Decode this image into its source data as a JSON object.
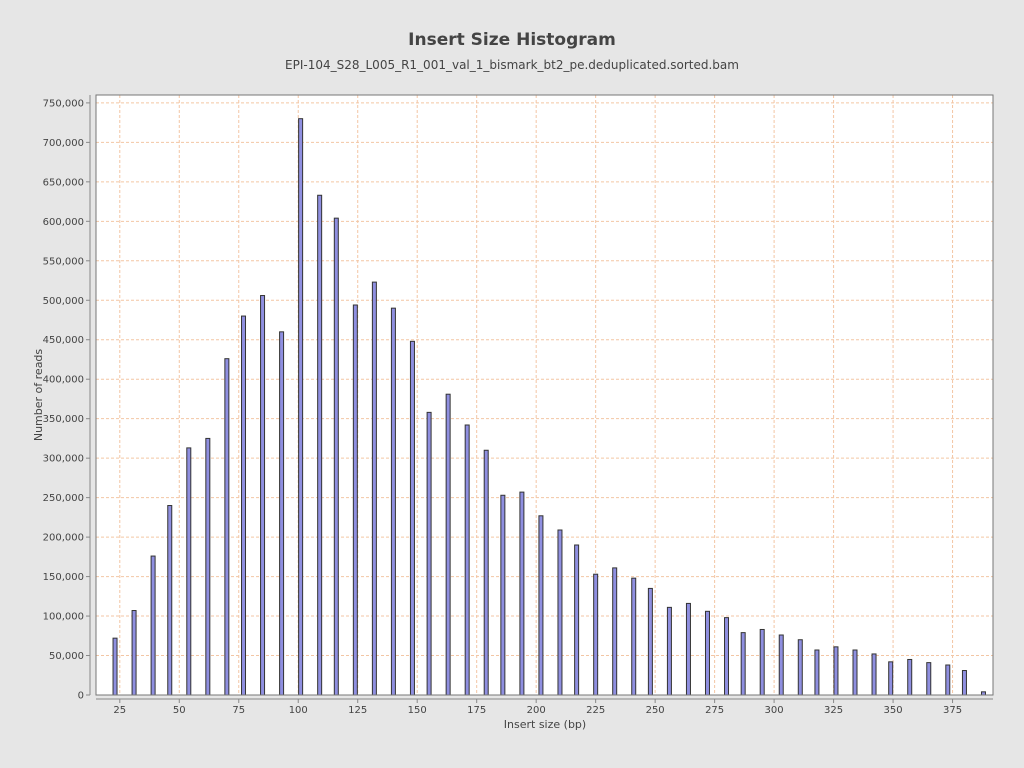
{
  "chart_data": {
    "type": "bar",
    "title": "Insert Size Histogram",
    "subtitle": "EPI-104_S28_L005_R1_001_val_1_bismark_bt2_pe.deduplicated.sorted.bam",
    "xlabel": "Insert size (bp)",
    "ylabel": "Number of reads",
    "xlim": [
      15,
      392
    ],
    "ylim": [
      0,
      760000
    ],
    "x_ticks": [
      25,
      50,
      75,
      100,
      125,
      150,
      175,
      200,
      225,
      250,
      275,
      300,
      325,
      350,
      375
    ],
    "x_tick_labels": [
      "25",
      "50",
      "75",
      "100",
      "125",
      "150",
      "175",
      "200",
      "225",
      "250",
      "275",
      "300",
      "325",
      "350",
      "375"
    ],
    "y_ticks": [
      0,
      50000,
      100000,
      150000,
      200000,
      250000,
      300000,
      350000,
      400000,
      450000,
      500000,
      550000,
      600000,
      650000,
      700000,
      750000
    ],
    "y_tick_labels": [
      "0",
      "50,000",
      "100,000",
      "150,000",
      "200,000",
      "250,000",
      "300,000",
      "350,000",
      "400,000",
      "450,000",
      "500,000",
      "550,000",
      "600,000",
      "650,000",
      "700,000",
      "750,000"
    ],
    "grid": true,
    "colors": {
      "bar_fill": "#8f8fe0",
      "bar_stroke": "#333333",
      "grid": "#f3c6a4",
      "plot_bg": "#ffffff"
    },
    "x": [
      23,
      31,
      39,
      46,
      54,
      62,
      70,
      77,
      85,
      93,
      101,
      109,
      116,
      124,
      132,
      140,
      148,
      155,
      163,
      171,
      179,
      186,
      194,
      202,
      210,
      217,
      225,
      233,
      241,
      248,
      256,
      264,
      272,
      280,
      287,
      295,
      303,
      311,
      318,
      326,
      334,
      342,
      349,
      357,
      365,
      373,
      380,
      388
    ],
    "values": [
      72000,
      107000,
      176000,
      240000,
      313000,
      325000,
      426000,
      480000,
      506000,
      460000,
      730000,
      633000,
      604000,
      494000,
      523000,
      490000,
      448000,
      358000,
      381000,
      342000,
      310000,
      253000,
      257000,
      227000,
      209000,
      190000,
      153000,
      161000,
      148000,
      135000,
      111000,
      116000,
      106000,
      98000,
      79000,
      83000,
      76000,
      70000,
      57000,
      61000,
      57000,
      52000,
      42000,
      45000,
      41000,
      38000,
      31000,
      4000
    ]
  }
}
